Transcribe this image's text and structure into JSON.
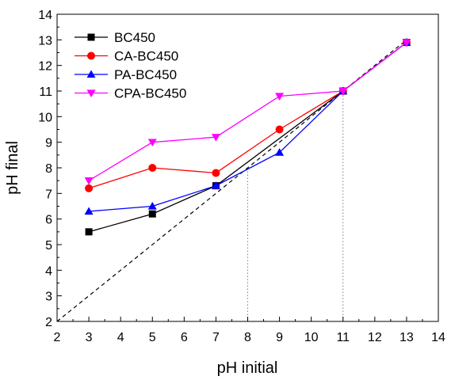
{
  "chart_data": {
    "type": "line",
    "xlabel": "pH initial",
    "ylabel": "pH final",
    "xlim": [
      2,
      14
    ],
    "ylim": [
      2,
      14
    ],
    "xticks": [
      2,
      3,
      4,
      5,
      6,
      7,
      8,
      9,
      10,
      11,
      12,
      13,
      14
    ],
    "yticks": [
      2,
      3,
      4,
      5,
      6,
      7,
      8,
      9,
      10,
      11,
      12,
      13,
      14
    ],
    "grid": false,
    "legend_position": "top-left",
    "series": [
      {
        "name": "BC450",
        "color": "#000000",
        "marker": "square",
        "x": [
          3,
          5,
          7,
          11,
          13
        ],
        "y": [
          5.5,
          6.2,
          7.3,
          11.0,
          12.9
        ]
      },
      {
        "name": "CA-BC450",
        "color": "#ff0000",
        "marker": "circle",
        "x": [
          3,
          5,
          7,
          9,
          11,
          13
        ],
        "y": [
          7.2,
          8.0,
          7.8,
          9.5,
          11.0,
          12.9
        ]
      },
      {
        "name": "PA-BC450",
        "color": "#0000ff",
        "marker": "triangle-up",
        "x": [
          3,
          5,
          7,
          9,
          11,
          13
        ],
        "y": [
          6.3,
          6.5,
          7.3,
          8.6,
          11.0,
          12.9
        ]
      },
      {
        "name": "CPA-BC450",
        "color": "#ff00ff",
        "marker": "triangle-down",
        "x": [
          3,
          5,
          7,
          9,
          11,
          13
        ],
        "y": [
          7.5,
          9.0,
          9.2,
          10.8,
          11.0,
          12.9
        ]
      }
    ],
    "reference_line": {
      "style": "dashed",
      "color": "#000000",
      "x": [
        2,
        13
      ],
      "y": [
        2,
        13
      ]
    },
    "vertical_guides": [
      {
        "x": 8,
        "y_top": 7.9,
        "style": "dotted",
        "color": "#808080"
      },
      {
        "x": 11,
        "y_top": 11.0,
        "style": "dotted",
        "color": "#808080"
      }
    ]
  }
}
